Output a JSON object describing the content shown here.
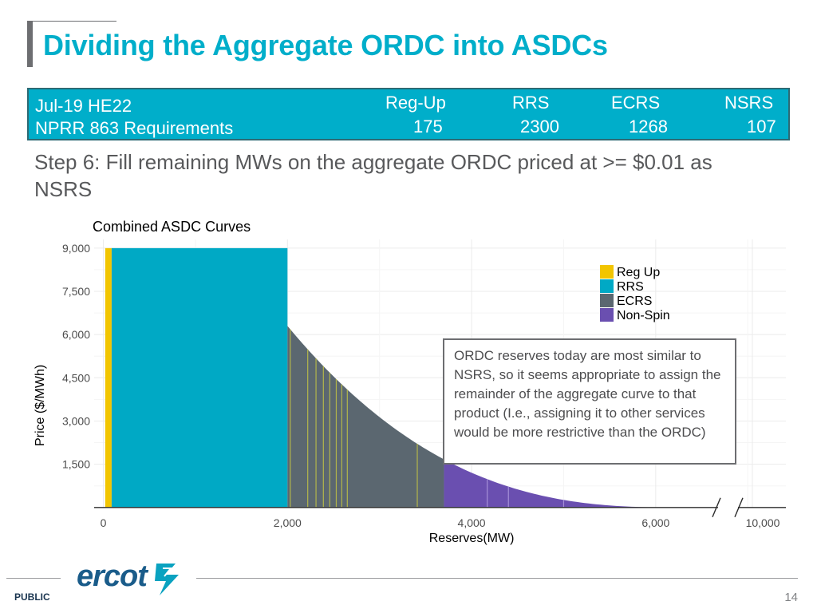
{
  "slide": {
    "title": "Dividing the Aggregate ORDC into ASDCs",
    "requirements": {
      "period": "Jul-19 HE22",
      "label": "NPRR 863 Requirements",
      "products": [
        {
          "name": "Reg-Up",
          "value": "175"
        },
        {
          "name": "RRS",
          "value": "2300"
        },
        {
          "name": "ECRS",
          "value": "1268"
        },
        {
          "name": "NSRS",
          "value": "107"
        }
      ]
    },
    "step_text": "Step 6:  Fill remaining MWs on the aggregate ORDC priced at >= $0.01 as NSRS",
    "callout": "ORDC reserves today are most similar to NSRS, so it seems appropriate to assign the remainder of the aggregate curve to that product (I.e., assigning it to other services would be more restrictive than the ORDC)",
    "footer": {
      "logo_text": "ercot",
      "classification": "PUBLIC",
      "page_number": "14"
    }
  },
  "chart_data": {
    "type": "area",
    "title": "Combined ASDC Curves",
    "xlabel": "Reserves(MW)",
    "ylabel": "Price ($/MWh)",
    "xlim": [
      -100,
      6400
    ],
    "ylim": [
      -200,
      9300
    ],
    "x_ticks": [
      {
        "value": 0,
        "label": "0"
      },
      {
        "value": 2000,
        "label": "2,000"
      },
      {
        "value": 4000,
        "label": "4,000"
      },
      {
        "value": 6000,
        "label": "6,000"
      }
    ],
    "x_break_tick": {
      "label": "10,000"
    },
    "y_ticks": [
      {
        "value": 1500,
        "label": "1,500"
      },
      {
        "value": 3000,
        "label": "3,000"
      },
      {
        "value": 4500,
        "label": "4,500"
      },
      {
        "value": 6000,
        "label": "6,000"
      },
      {
        "value": 7500,
        "label": "7,500"
      },
      {
        "value": 9000,
        "label": "9,000"
      }
    ],
    "legend_position": "top-right",
    "curve": {
      "plateau_price": 9000,
      "plateau_end_mw": 2000,
      "decay_start_mw": 2000,
      "decay_start_price": 6300,
      "decay_end_mw": 6250,
      "decay_exponent": 2.6
    },
    "series": [
      {
        "name": "Reg Up",
        "color": "#f2c500",
        "segments": [
          [
            20,
            90
          ]
        ]
      },
      {
        "name": "RRS",
        "color": "#00a9c5",
        "segments": [
          [
            90,
            2000
          ]
        ]
      },
      {
        "name": "ECRS",
        "color": "#5b6770",
        "segments": [
          [
            2000,
            3700
          ]
        ]
      },
      {
        "name": "Non-Spin",
        "color": "#6a4fb0",
        "segments": [
          [
            3700,
            6250
          ]
        ]
      }
    ],
    "stripes": [
      {
        "x": 2030,
        "color": "#b3b54a"
      },
      {
        "x": 2220,
        "color": "#b3b54a"
      },
      {
        "x": 2310,
        "color": "#b3b54a"
      },
      {
        "x": 2390,
        "color": "#b3b54a"
      },
      {
        "x": 2460,
        "color": "#b3b54a"
      },
      {
        "x": 2530,
        "color": "#b3b54a"
      },
      {
        "x": 2590,
        "color": "#b3b54a"
      },
      {
        "x": 2650,
        "color": "#b3b54a"
      },
      {
        "x": 3410,
        "color": "#b3b54a"
      },
      {
        "x": 4170,
        "color": "#a58fd8"
      },
      {
        "x": 4400,
        "color": "#a58fd8"
      },
      {
        "x": 5000,
        "color": "#a58fd8"
      }
    ]
  }
}
